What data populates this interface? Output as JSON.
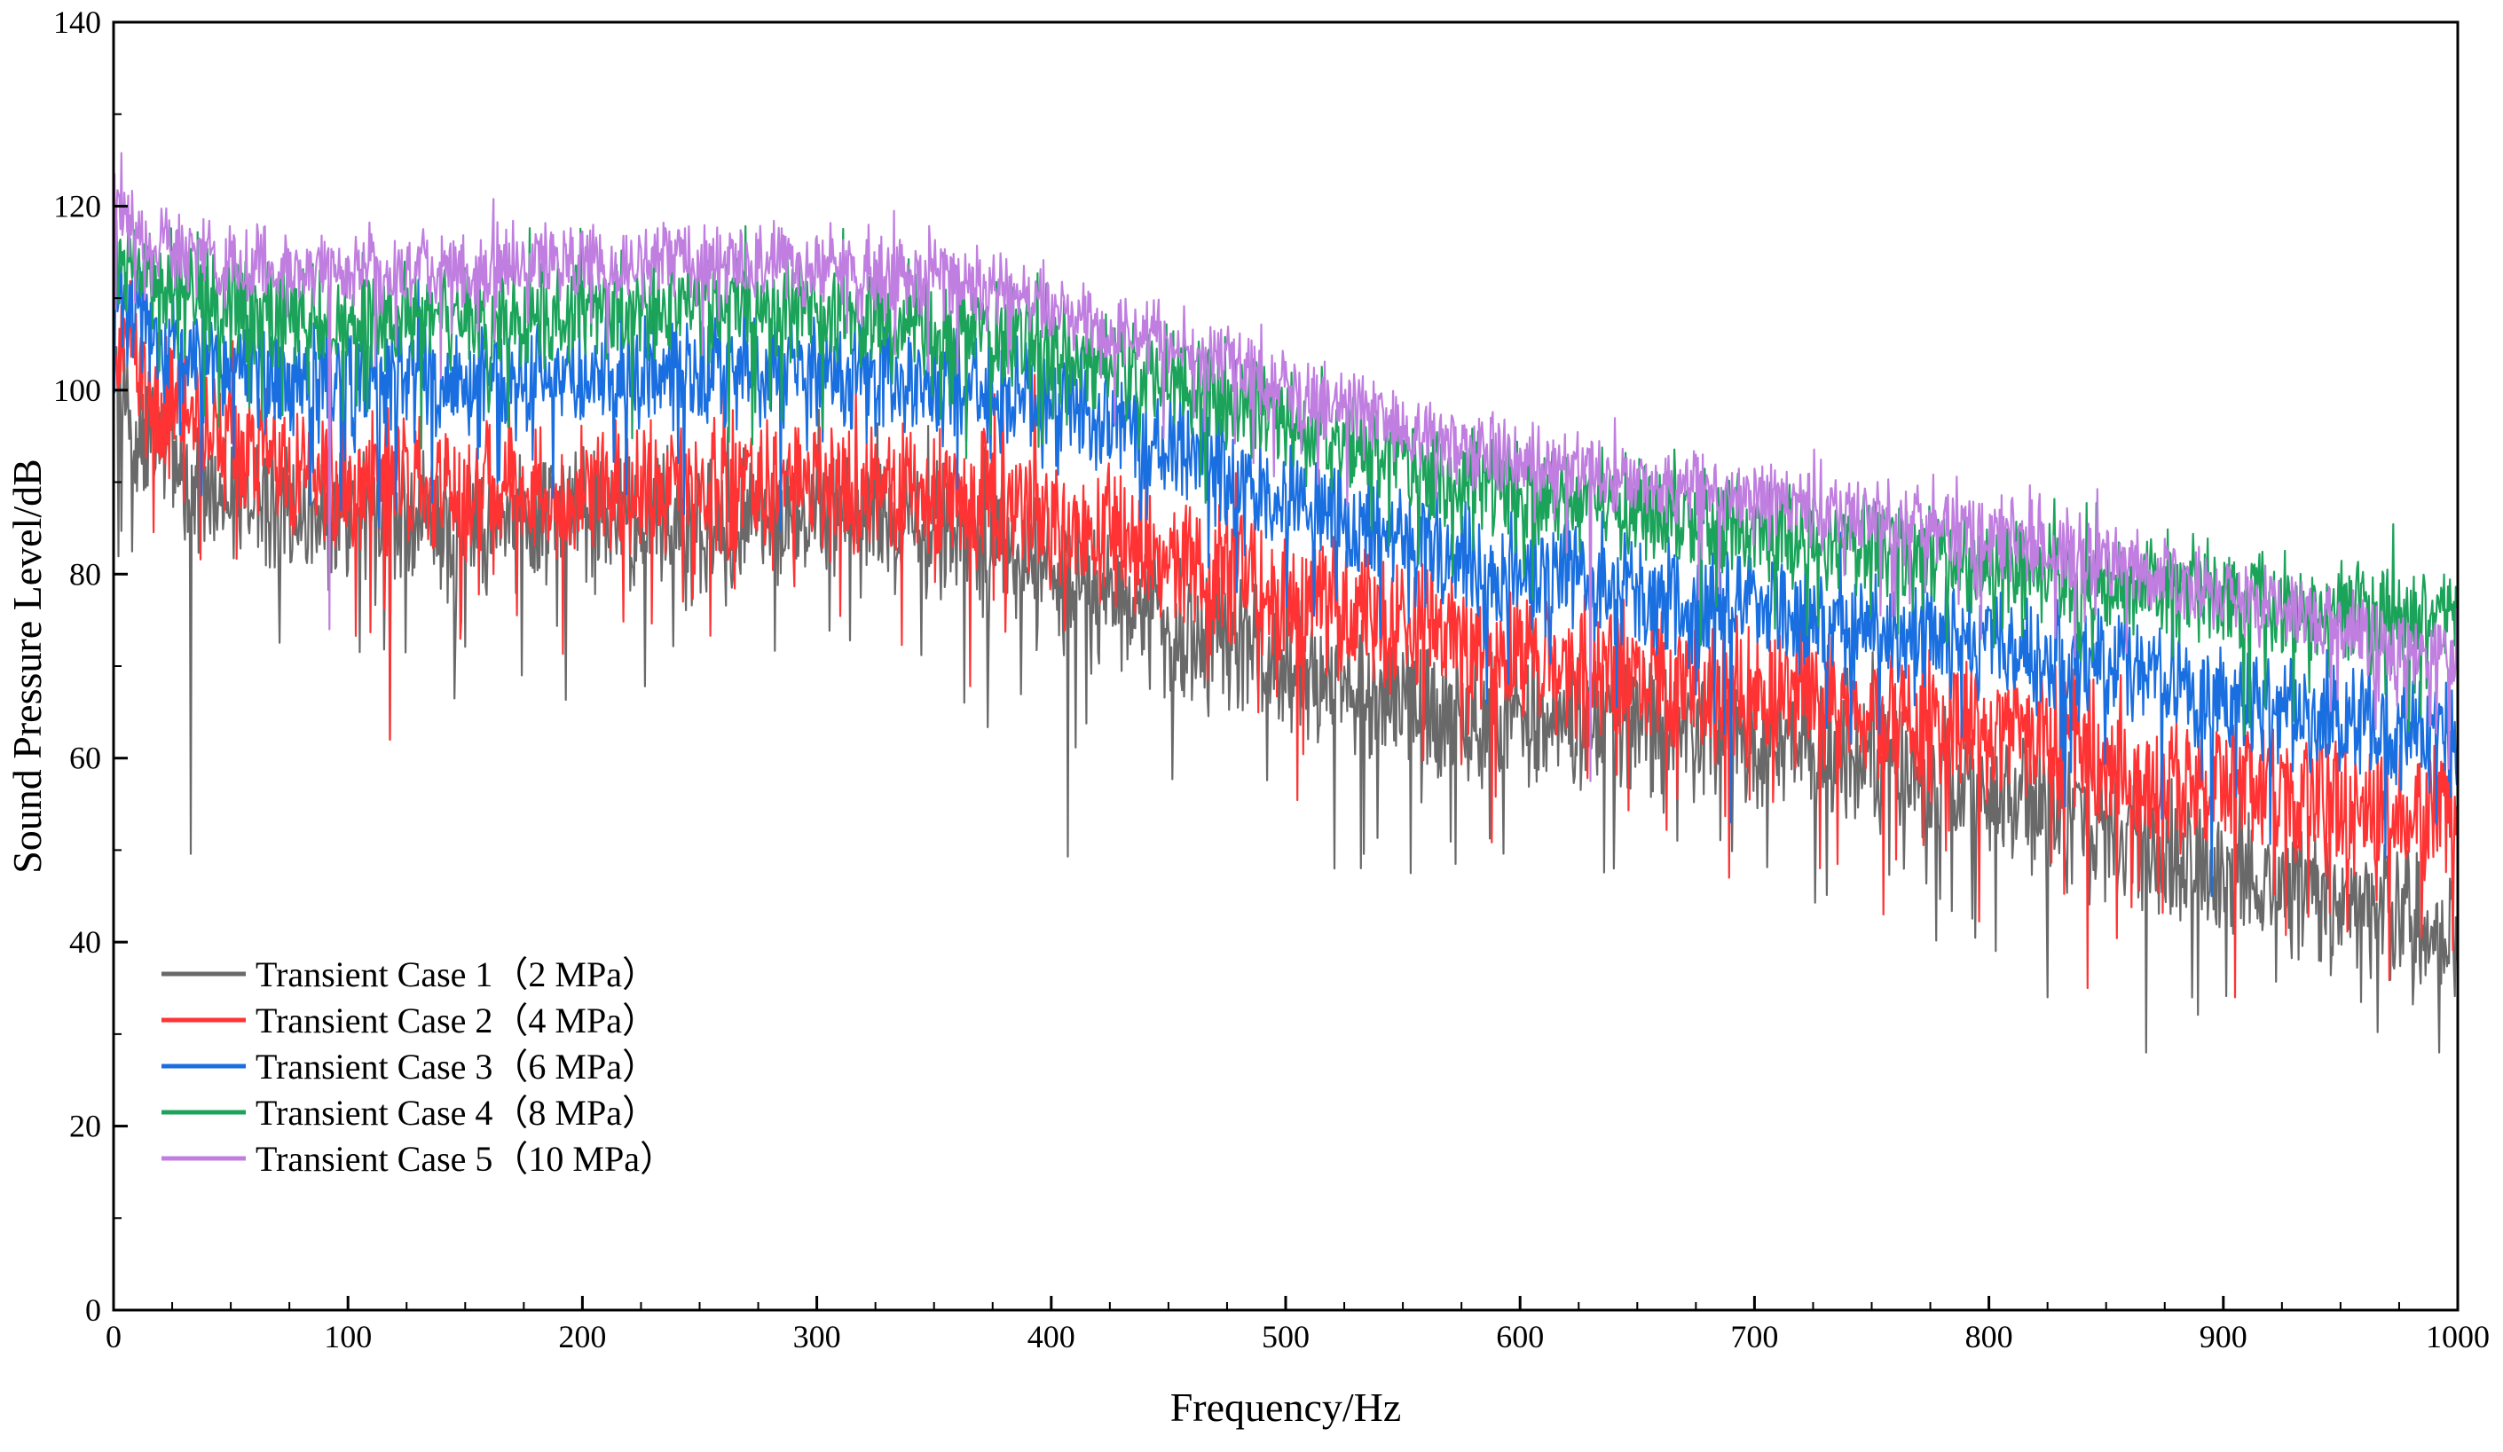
{
  "chart_data": {
    "type": "line",
    "title": "",
    "xlabel": "Frequency/Hz",
    "ylabel": "Sound Pressure Level/dB",
    "xlim": [
      0,
      1000
    ],
    "ylim": [
      0,
      140
    ],
    "x_ticks": [
      0,
      100,
      200,
      300,
      400,
      500,
      600,
      700,
      800,
      900,
      1000
    ],
    "y_ticks": [
      0,
      20,
      40,
      60,
      80,
      100,
      120,
      140
    ],
    "x_tick_labels": [
      "0",
      "100",
      "200",
      "300",
      "400",
      "500",
      "600",
      "700",
      "800",
      "900",
      "1000"
    ],
    "y_tick_labels": [
      "0",
      "20",
      "40",
      "60",
      "80",
      "100",
      "120",
      "140"
    ],
    "grid": false,
    "legend_position": "bottom-left",
    "series": [
      {
        "name": "Transient Case 1（2 MPa）",
        "color": "#696969",
        "x": [
          0,
          25,
          50,
          75,
          100,
          125,
          150,
          175,
          200,
          225,
          250,
          275,
          300,
          325,
          350,
          375,
          400,
          425,
          450,
          475,
          500,
          525,
          550,
          575,
          600,
          625,
          650,
          675,
          700,
          725,
          750,
          775,
          800,
          825,
          850,
          875,
          900,
          925,
          950,
          975,
          1000
        ],
        "center": [
          99,
          92,
          88,
          87,
          86,
          86,
          85,
          85,
          86,
          86,
          86,
          86,
          87,
          86,
          85,
          84,
          80,
          77,
          74,
          73,
          70,
          68,
          66,
          64,
          64,
          64,
          63,
          63,
          62,
          61,
          60,
          58,
          56,
          54,
          52,
          50,
          48,
          46,
          44,
          42,
          41
        ],
        "spread": 6,
        "min_dips": [
          [
            33,
            49.6
          ],
          [
            118,
            62
          ],
          [
            407,
            49.3
          ],
          [
            521,
            48
          ],
          [
            640,
            48
          ],
          [
            825,
            34
          ],
          [
            867,
            28
          ],
          [
            992,
            28
          ]
        ]
      },
      {
        "name": "Transient Case 2（4 MPa）",
        "color": "#ff3333",
        "x": [
          0,
          25,
          50,
          75,
          100,
          125,
          150,
          175,
          200,
          225,
          250,
          275,
          300,
          325,
          350,
          375,
          400,
          425,
          450,
          475,
          500,
          525,
          550,
          575,
          600,
          625,
          650,
          675,
          700,
          725,
          750,
          775,
          800,
          825,
          850,
          875,
          900,
          925,
          950,
          975,
          1000
        ],
        "center": [
          104,
          98,
          94,
          91,
          90,
          89,
          89,
          89,
          89,
          89,
          89,
          89,
          89,
          89,
          89,
          88,
          86,
          84,
          82,
          80,
          78,
          76,
          74,
          72,
          71,
          70,
          69,
          68,
          67,
          66,
          65,
          64,
          63,
          62,
          60,
          58,
          57,
          56,
          55,
          54,
          53
        ],
        "spread": 6,
        "min_dips": [
          [
            118,
            62
          ],
          [
            689,
            47
          ],
          [
            755,
            43
          ],
          [
            842,
            35
          ],
          [
            905,
            34
          ]
        ]
      },
      {
        "name": "Transient Case 3（6 MPa）",
        "color": "#1a6fe0",
        "x": [
          0,
          25,
          50,
          75,
          100,
          125,
          150,
          175,
          200,
          225,
          250,
          275,
          300,
          325,
          350,
          375,
          400,
          425,
          450,
          475,
          500,
          525,
          550,
          575,
          600,
          625,
          650,
          675,
          700,
          725,
          750,
          775,
          800,
          825,
          850,
          875,
          900,
          925,
          950,
          975,
          1000
        ],
        "center": [
          110,
          104,
          102,
          101,
          101,
          101,
          101,
          101,
          102,
          102,
          102,
          102,
          102,
          101,
          101,
          100,
          99,
          97,
          94,
          91,
          88,
          86,
          84,
          82,
          80,
          79,
          78,
          77,
          76,
          75,
          74,
          73,
          72,
          71,
          70,
          68,
          66,
          65,
          64,
          63,
          62
        ],
        "spread": 5,
        "min_dips": [
          [
            690,
            53
          ],
          [
            895,
            45
          ]
        ]
      },
      {
        "name": "Transient Case 4（8 MPa）",
        "color": "#1ba35a",
        "x": [
          0,
          25,
          50,
          75,
          100,
          125,
          150,
          175,
          200,
          225,
          250,
          275,
          300,
          325,
          350,
          375,
          400,
          425,
          450,
          475,
          500,
          525,
          550,
          575,
          600,
          625,
          650,
          675,
          700,
          725,
          750,
          775,
          800,
          825,
          850,
          875,
          900,
          925,
          950,
          975,
          1000
        ],
        "center": [
          114,
          111,
          109,
          108,
          108,
          108,
          108,
          108,
          109,
          109,
          109,
          109,
          108,
          108,
          107,
          106,
          105,
          103,
          101,
          99,
          96,
          94,
          92,
          90,
          89,
          88,
          87,
          86,
          85,
          84,
          83,
          82,
          81,
          80,
          79,
          78,
          77,
          77,
          76,
          76,
          76
        ],
        "spread": 4.5,
        "min_dips": []
      },
      {
        "name": "Transient Case 5（10 MPa）",
        "color": "#c07ee0",
        "x": [
          0,
          25,
          50,
          75,
          100,
          125,
          150,
          175,
          200,
          225,
          250,
          275,
          300,
          325,
          350,
          375,
          400,
          425,
          450,
          475,
          500,
          525,
          550,
          575,
          600,
          625,
          650,
          675,
          700,
          725,
          750,
          775,
          800,
          825,
          850,
          875,
          900,
          925,
          950,
          975,
          1000
        ],
        "center": [
          120,
          115,
          114,
          113,
          113,
          113,
          113,
          114,
          114,
          114,
          114,
          114,
          113,
          113,
          112,
          111,
          109,
          107,
          105,
          103,
          100,
          98,
          96,
          94,
          92,
          91,
          90,
          89,
          88,
          87,
          86,
          85,
          84,
          83,
          82,
          80,
          78,
          76,
          74,
          72,
          71
        ],
        "spread": 3.5,
        "min_dips": [
          [
            92,
            74
          ],
          [
            630,
            57.5
          ]
        ]
      }
    ]
  }
}
